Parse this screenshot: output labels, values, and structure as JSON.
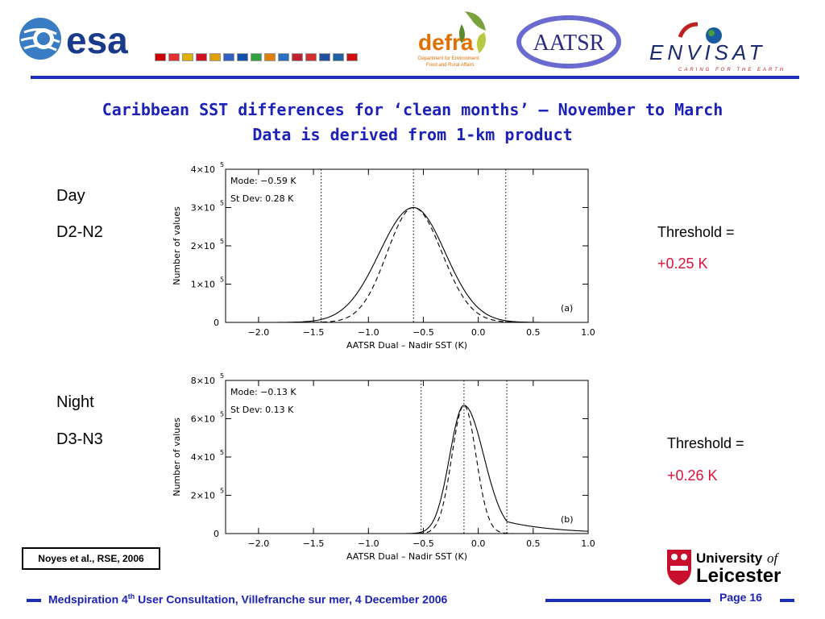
{
  "header": {
    "esa_text": "esa",
    "defra_text": "defra",
    "defra_sub1": "Department for Environment",
    "defra_sub2": "Food and Rural Affairs",
    "aatsr_text": "AATSR",
    "envisat_text": "ENVISAT",
    "envisat_tagline": "CARING FOR THE EARTH",
    "flag_colors": [
      "#d00000",
      "#e03030",
      "#e0b000",
      "#d01020",
      "#e0a000",
      "#3060c0",
      "#1050b0",
      "#30a040",
      "#e08000",
      "#2a70c0",
      "#c02030",
      "#d03030",
      "#2050a0",
      "#2060a0",
      "#d01010"
    ]
  },
  "title": {
    "line1": "Caribbean SST differences for ‘clean months’ – November to March",
    "line2": "Data is derived from 1-km product"
  },
  "panels": [
    {
      "label1": "Day",
      "label2": "D2-N2",
      "threshold_label": "Threshold =",
      "threshold_value": "+0.25 K"
    },
    {
      "label1": "Night",
      "label2": "D3-N3",
      "threshold_label": "Threshold =",
      "threshold_value": "+0.26 K"
    }
  ],
  "chart_data": [
    {
      "type": "line",
      "xlabel": "AATSR Dual – Nadir SST (K)",
      "ylabel": "Number of values",
      "xlim": [
        -2.3,
        1.0
      ],
      "ylim": [
        0,
        400000
      ],
      "x_ticks": [
        -2.0,
        -1.5,
        -1.0,
        -0.5,
        0.0,
        0.5,
        1.0
      ],
      "x_tick_labels": [
        "−2.0",
        "−1.5",
        "−1.0",
        "−0.5",
        "0.0",
        "0.5",
        "1.0"
      ],
      "y_ticks": [
        0,
        100000,
        200000,
        300000,
        400000
      ],
      "y_tick_labels": [
        "0",
        "1×10",
        "2×10",
        "3×10",
        "4×10"
      ],
      "y_tick_exponents": [
        "",
        "5",
        "5",
        "5",
        "5"
      ],
      "annotations": [
        "Mode: −0.59 K",
        "St Dev: 0.28 K"
      ],
      "panel_label": "(a)",
      "vlines": [
        -1.43,
        -0.59,
        0.25
      ],
      "series": [
        {
          "style": "solid",
          "mode": -0.59,
          "peak": 300000,
          "sigma_left": 0.31,
          "sigma_right": 0.29
        },
        {
          "style": "dashed",
          "mode": -0.59,
          "peak": 300000,
          "sigma_left": 0.24,
          "sigma_right": 0.26
        }
      ],
      "grid": false
    },
    {
      "type": "line",
      "xlabel": "AATSR Dual – Nadir SST (K)",
      "ylabel": "Number of values",
      "xlim": [
        -2.3,
        1.0
      ],
      "ylim": [
        0,
        800000
      ],
      "x_ticks": [
        -2.0,
        -1.5,
        -1.0,
        -0.5,
        0.0,
        0.5,
        1.0
      ],
      "x_tick_labels": [
        "−2.0",
        "−1.5",
        "−1.0",
        "−0.5",
        "0.0",
        "0.5",
        "1.0"
      ],
      "y_ticks": [
        0,
        200000,
        400000,
        600000,
        800000
      ],
      "y_tick_labels": [
        "0",
        "2×10",
        "4×10",
        "6×10",
        "8×10"
      ],
      "y_tick_exponents": [
        "",
        "5",
        "5",
        "5",
        "5"
      ],
      "annotations": [
        "Mode: −0.13 K",
        "St Dev: 0.13 K"
      ],
      "panel_label": "(b)",
      "vlines": [
        -0.52,
        -0.13,
        0.26
      ],
      "series": [
        {
          "style": "solid",
          "mode": -0.13,
          "peak": 670000,
          "sigma_left": 0.13,
          "sigma_right": 0.18,
          "tail": true
        },
        {
          "style": "dashed",
          "mode": -0.13,
          "peak": 670000,
          "sigma_left": 0.11,
          "sigma_right": 0.11
        }
      ],
      "grid": false
    }
  ],
  "citation": "Noyes et al., RSE, 2006",
  "leicester": {
    "line1": "University",
    "of": "of",
    "line2": "Leicester"
  },
  "footer": {
    "text_before": "Medspiration 4",
    "sup": "th",
    "text_after": " User Consultation, Villefranche sur mer, 4 December 2006",
    "page": "Page 16"
  }
}
